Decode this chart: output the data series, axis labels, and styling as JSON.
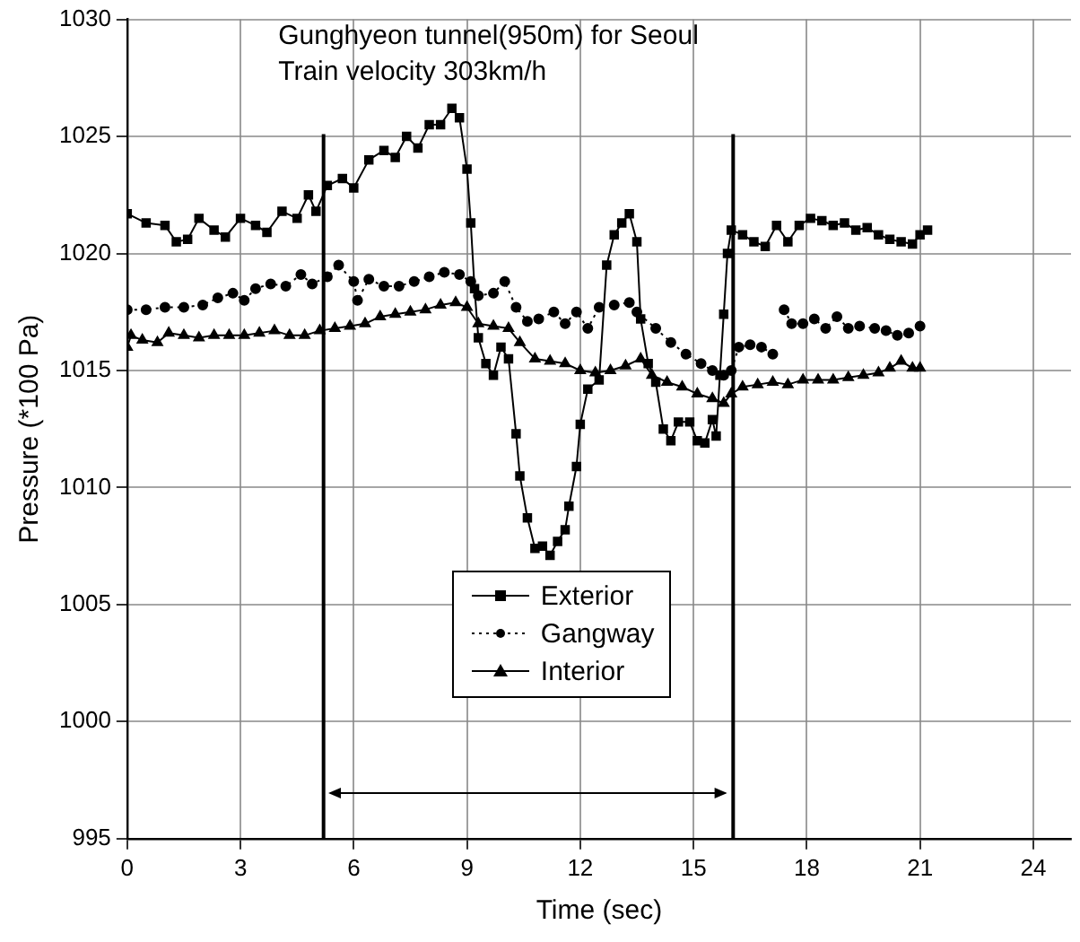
{
  "chart_data": {
    "type": "line",
    "title": "Gunghyeon tunnel(950m) for Seoul",
    "subtitle": "Train velocity 303km/h",
    "xlabel": "Time (sec)",
    "ylabel": "Pressure (*100 Pa)",
    "xlim": [
      0,
      25
    ],
    "xticks": [
      0,
      3,
      6,
      9,
      12,
      15,
      18,
      21,
      24
    ],
    "ylim": [
      995,
      1030
    ],
    "yticks": [
      995,
      1000,
      1005,
      1010,
      1015,
      1020,
      1025,
      1030
    ],
    "grid": true,
    "legend": "bottom",
    "ref_lines": [
      {
        "axis": "x",
        "value": 5.2,
        "color": "#000000"
      },
      {
        "axis": "x",
        "value": 16.05,
        "color": "#000000"
      }
    ],
    "series": [
      {
        "name": "Exterior",
        "color": "#000000",
        "marker": "square",
        "line_style": "solid",
        "x": [
          0,
          0.5,
          1.0,
          1.3,
          1.6,
          1.9,
          2.3,
          2.6,
          3.0,
          3.4,
          3.7,
          4.1,
          4.5,
          4.8,
          5.0,
          5.3,
          5.7,
          6.0,
          6.4,
          6.8,
          7.1,
          7.4,
          7.7,
          8.0,
          8.3,
          8.6,
          8.8,
          9.0,
          9.1,
          9.2,
          9.3,
          9.5,
          9.7,
          9.9,
          10.1,
          10.3,
          10.4,
          10.6,
          10.8,
          11.0,
          11.2,
          11.4,
          11.6,
          11.7,
          11.9,
          12.0,
          12.2,
          12.5,
          12.7,
          12.9,
          13.1,
          13.3,
          13.5,
          13.6,
          13.8,
          14.0,
          14.2,
          14.4,
          14.6,
          14.9,
          15.1,
          15.3,
          15.5,
          15.6,
          15.7,
          15.8,
          15.9,
          16.0,
          16.3,
          16.6,
          16.9,
          17.2,
          17.5,
          17.8,
          18.1,
          18.4,
          18.7,
          19.0,
          19.3,
          19.6,
          19.9,
          20.2,
          20.5,
          20.8,
          21.0,
          21.2
        ],
        "values": [
          1021.7,
          1021.3,
          1021.2,
          1020.5,
          1020.6,
          1021.5,
          1021.0,
          1020.7,
          1021.5,
          1021.2,
          1020.9,
          1021.8,
          1021.5,
          1022.5,
          1021.8,
          1022.9,
          1023.2,
          1022.8,
          1024.0,
          1024.4,
          1024.1,
          1025.0,
          1024.5,
          1025.5,
          1025.5,
          1026.2,
          1025.8,
          1023.6,
          1021.3,
          1018.5,
          1016.4,
          1015.3,
          1014.8,
          1016.0,
          1015.5,
          1012.3,
          1010.5,
          1008.7,
          1007.4,
          1007.5,
          1007.1,
          1007.7,
          1008.2,
          1009.2,
          1010.9,
          1012.7,
          1014.2,
          1014.6,
          1019.5,
          1020.8,
          1021.3,
          1021.7,
          1020.5,
          1017.2,
          1015.3,
          1014.5,
          1012.5,
          1012.0,
          1012.8,
          1012.8,
          1012.0,
          1011.9,
          1012.9,
          1012.2,
          1014.8,
          1017.4,
          1020.0,
          1021.0,
          1020.8,
          1020.5,
          1020.3,
          1021.2,
          1020.5,
          1021.2,
          1021.5,
          1021.4,
          1021.2,
          1021.3,
          1021.0,
          1021.1,
          1020.8,
          1020.6,
          1020.5,
          1020.4,
          1020.8,
          1021.0
        ]
      },
      {
        "name": "Gangway",
        "color": "#000000",
        "marker": "circle",
        "line_style": "dotted",
        "x": [
          0,
          0.5,
          1.0,
          1.5,
          2.0,
          2.4,
          2.8,
          3.1,
          3.4,
          3.8,
          4.2,
          4.6,
          4.9,
          5.3,
          5.6,
          6.0,
          6.1,
          6.4,
          6.8,
          7.2,
          7.6,
          8.0,
          8.4,
          8.8,
          9.1,
          9.3,
          9.7,
          10.0,
          10.3,
          10.6,
          10.9,
          11.3,
          11.6,
          11.9,
          12.2,
          12.5,
          12.9,
          13.3,
          13.5,
          14.0,
          14.4,
          14.8,
          15.2,
          15.5,
          15.8,
          16.0,
          16.2,
          16.5,
          16.8,
          17.1,
          17.25,
          17.4,
          17.6,
          17.9,
          18.2,
          18.5,
          18.8,
          19.1,
          19.4,
          19.8,
          20.1,
          20.4,
          20.7,
          21.0
        ],
        "values": [
          1017.6,
          1017.6,
          1017.7,
          1017.7,
          1017.8,
          1018.1,
          1018.3,
          1018.0,
          1018.5,
          1018.7,
          1018.6,
          1019.1,
          1018.7,
          1019.0,
          1019.5,
          1018.8,
          1018.0,
          1018.9,
          1018.6,
          1018.6,
          1018.8,
          1019.0,
          1019.2,
          1019.1,
          1018.8,
          1018.2,
          1018.3,
          1018.8,
          1017.7,
          1017.1,
          1017.2,
          1017.5,
          1017.0,
          1017.5,
          1016.8,
          1017.7,
          1017.8,
          1017.9,
          1017.5,
          1016.8,
          1016.2,
          1015.7,
          1015.3,
          1015.0,
          1014.8,
          1015.0,
          1016.0,
          1016.1,
          1016.0,
          1015.7,
          null,
          1017.6,
          1017.0,
          1017.0,
          1017.2,
          1016.8,
          1017.3,
          1016.8,
          1016.9,
          1016.8,
          1016.7,
          1016.5,
          1016.6,
          1016.9
        ]
      },
      {
        "name": "Interior",
        "color": "#000000",
        "marker": "triangle",
        "line_style": "solid",
        "x": [
          0,
          0.1,
          0.4,
          0.8,
          1.1,
          1.5,
          1.9,
          2.3,
          2.7,
          3.1,
          3.5,
          3.9,
          4.3,
          4.7,
          5.1,
          5.5,
          5.9,
          6.3,
          6.7,
          7.1,
          7.5,
          7.9,
          8.3,
          8.7,
          9.0,
          9.3,
          9.7,
          10.1,
          10.4,
          10.8,
          11.2,
          11.6,
          12.0,
          12.4,
          12.8,
          13.2,
          13.6,
          13.9,
          14.3,
          14.7,
          15.1,
          15.5,
          15.8,
          16.0,
          16.3,
          16.7,
          17.1,
          17.5,
          17.9,
          18.3,
          18.7,
          19.1,
          19.5,
          19.9,
          20.2,
          20.5,
          20.8,
          21.0
        ],
        "values": [
          1016.0,
          1016.5,
          1016.3,
          1016.2,
          1016.6,
          1016.5,
          1016.4,
          1016.5,
          1016.5,
          1016.5,
          1016.6,
          1016.7,
          1016.5,
          1016.5,
          1016.7,
          1016.8,
          1016.9,
          1017.0,
          1017.3,
          1017.4,
          1017.5,
          1017.6,
          1017.8,
          1017.9,
          1017.7,
          1017.0,
          1016.9,
          1016.8,
          1016.2,
          1015.5,
          1015.4,
          1015.3,
          1015.0,
          1014.9,
          1015.0,
          1015.2,
          1015.5,
          1014.8,
          1014.5,
          1014.3,
          1014.0,
          1013.8,
          1013.6,
          1014.0,
          1014.3,
          1014.4,
          1014.5,
          1014.4,
          1014.6,
          1014.6,
          1014.6,
          1014.7,
          1014.8,
          1014.9,
          1015.1,
          1015.4,
          1015.1,
          1015.1
        ]
      }
    ]
  }
}
